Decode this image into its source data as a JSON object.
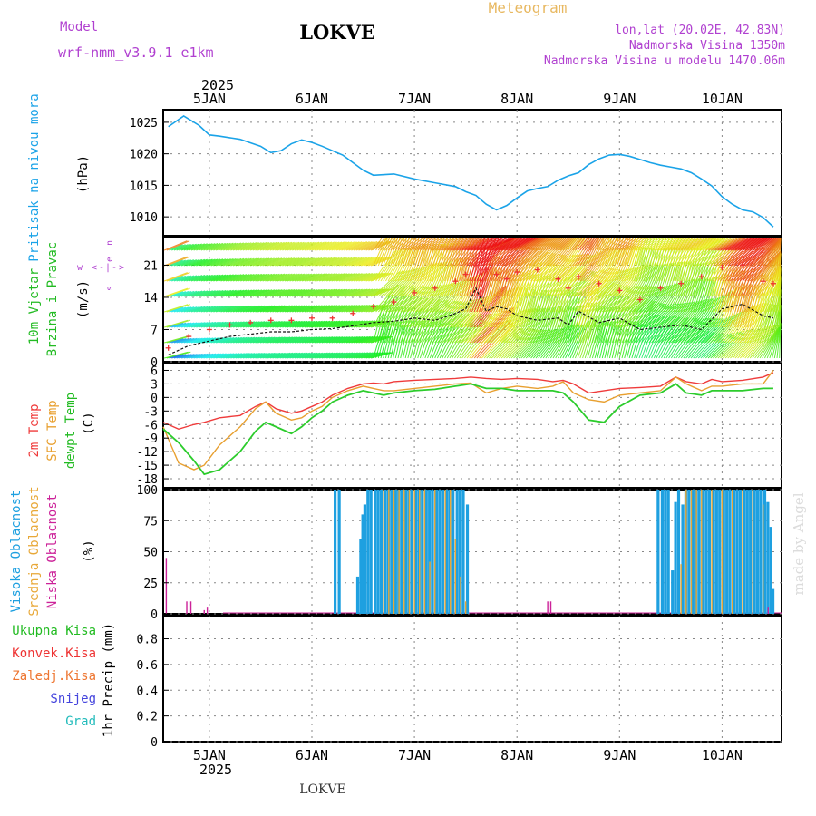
{
  "header": {
    "model_label": "Model",
    "model_name": "wrf-nmm_v3.9.1 e1km",
    "station": "LOKVE",
    "product": "Meteogram",
    "coords": "lon,lat (20.02E, 42.83N)",
    "elevation": "Nadmorska Visina 1350m",
    "model_elevation": "Nadmorska Visina u modelu 1470.06m",
    "footer_station": "LOKVE",
    "watermark": "made by Angel"
  },
  "axis": {
    "top_year": "2025",
    "bottom_year": "2025",
    "day_labels": [
      "5JAN",
      "6JAN",
      "7JAN",
      "8JAN",
      "9JAN",
      "10JAN"
    ]
  },
  "panels": {
    "pressure": {
      "labels": [
        "Pritisak na nivou mora"
      ],
      "unit": "(hPa)",
      "ticks": [
        "1010",
        "1015",
        "1020",
        "1025"
      ]
    },
    "wind": {
      "labels": [
        "10m Vjetar",
        "Brzina i Pravac"
      ],
      "unit": "(m/s)",
      "ticks": [
        "0",
        "7",
        "14",
        "21"
      ],
      "compass": [
        "w",
        "<",
        "-",
        "|",
        "-",
        ">",
        "e",
        "s",
        "n"
      ]
    },
    "temp": {
      "labels": [
        "2m Temp",
        "SFC Temp",
        "dewpt Temp"
      ],
      "unit": "(C)",
      "ticks": [
        "-18",
        "-15",
        "-12",
        "-9",
        "-6",
        "-3",
        "0",
        "3",
        "6"
      ]
    },
    "cloud": {
      "labels": [
        "Visoka Oblacnost",
        "Srednja Oblacnost",
        "Niska Oblacnost"
      ],
      "unit": "(%)",
      "ticks": [
        "0",
        "25",
        "50",
        "75",
        "100"
      ]
    },
    "precip": {
      "labels": [
        "Ukupna Kisa",
        "Konvek.Kisa",
        "Zaledj.Kisa",
        "Snijeg",
        "Grad"
      ],
      "unit": "1hr Precip (mm)",
      "ticks": [
        "0",
        "0.2",
        "0.4",
        "0.6",
        "0.8"
      ]
    }
  },
  "colors": {
    "pressure": "#1aa3e8",
    "temp_2m": "#ef3b3b",
    "temp_sfc": "#e8a030",
    "temp_dew": "#2ccc2c",
    "cloud_high": "#1ea0e0",
    "cloud_mid": "#e8a838",
    "cloud_low": "#cc2299",
    "precip_total": "#22bb22",
    "precip_conv": "#ee3333",
    "precip_frz": "#ee7733",
    "precip_snow": "#4444dd",
    "precip_hail": "#22bbbb",
    "model_text": "#b040d0",
    "meteogram": "#e8b860",
    "wind_speed": "#111111",
    "wind_gust": "#ee3333"
  },
  "chart_data": [
    {
      "type": "line",
      "title": "Pritisak na nivou mora",
      "ylabel": "(hPa)",
      "ylim": [
        1007,
        1027
      ],
      "x_unit": "day of January 2025",
      "x": [
        4.6,
        4.75,
        4.9,
        5.0,
        5.1,
        5.3,
        5.5,
        5.6,
        5.7,
        5.8,
        5.9,
        6.0,
        6.1,
        6.2,
        6.3,
        6.4,
        6.5,
        6.6,
        6.8,
        7.0,
        7.2,
        7.4,
        7.5,
        7.6,
        7.7,
        7.8,
        7.9,
        8.0,
        8.1,
        8.2,
        8.3,
        8.4,
        8.5,
        8.6,
        8.7,
        8.8,
        8.9,
        9.0,
        9.1,
        9.2,
        9.3,
        9.4,
        9.5,
        9.6,
        9.7,
        9.8,
        9.9,
        10.0,
        10.1,
        10.2,
        10.3,
        10.4,
        10.5
      ],
      "series": [
        {
          "values": [
            1024.3,
            1026.0,
            1024.5,
            1023.0,
            1022.8,
            1022.3,
            1021.2,
            1020.2,
            1020.5,
            1021.6,
            1022.2,
            1021.8,
            1021.2,
            1020.5,
            1019.8,
            1018.6,
            1017.4,
            1016.6,
            1016.8,
            1016.0,
            1015.4,
            1014.8,
            1014.0,
            1013.4,
            1012.0,
            1011.1,
            1011.8,
            1013.0,
            1014.1,
            1014.5,
            1014.8,
            1015.8,
            1016.5,
            1017.0,
            1018.3,
            1019.2,
            1019.8,
            1019.9,
            1019.6,
            1019.1,
            1018.6,
            1018.2,
            1017.9,
            1017.6,
            1017.0,
            1016.0,
            1014.9,
            1013.2,
            1012.0,
            1011.1,
            1010.8,
            1009.9,
            1008.4
          ]
        }
      ]
    },
    {
      "type": "line",
      "title": "10m Vjetar Brzina i Pravac",
      "ylabel": "(m/s)",
      "ylim": [
        0,
        27
      ],
      "x_unit": "day of January 2025",
      "x": [
        4.6,
        4.8,
        5.0,
        5.2,
        5.4,
        5.6,
        5.8,
        6.0,
        6.2,
        6.4,
        6.6,
        6.8,
        7.0,
        7.2,
        7.4,
        7.5,
        7.6,
        7.7,
        7.8,
        7.9,
        8.0,
        8.2,
        8.4,
        8.5,
        8.6,
        8.8,
        9.0,
        9.2,
        9.4,
        9.6,
        9.8,
        10.0,
        10.2,
        10.4,
        10.5
      ],
      "series": [
        {
          "values": [
            1.5,
            3.5,
            4.5,
            5.5,
            6.0,
            6.5,
            6.5,
            7.0,
            7.2,
            7.8,
            8.5,
            8.8,
            9.5,
            9.0,
            10.5,
            11.5,
            16.0,
            11.0,
            12.0,
            11.5,
            10.0,
            9.0,
            9.5,
            8.0,
            11.0,
            8.5,
            9.5,
            7.0,
            7.5,
            8.0,
            7.0,
            11.5,
            12.5,
            10.0,
            9.5
          ]
        },
        {
          "values": [
            3.0,
            5.5,
            7.0,
            8.0,
            8.5,
            9.0,
            9.0,
            9.5,
            9.5,
            10.5,
            12.0,
            13.0,
            15.0,
            16.0,
            17.5,
            19.0,
            21.0,
            20.0,
            19.0,
            18.0,
            19.5,
            20.0,
            18.0,
            16.0,
            18.5,
            17.0,
            15.5,
            13.5,
            16.0,
            17.0,
            18.5,
            20.5,
            21.0,
            17.5,
            17.0
          ]
        }
      ]
    },
    {
      "type": "line",
      "title": "Temp",
      "ylabel": "(C)",
      "ylim": [
        -20,
        7.5
      ],
      "x_unit": "day of January 2025",
      "x": [
        4.55,
        4.7,
        4.85,
        4.95,
        5.1,
        5.3,
        5.45,
        5.55,
        5.65,
        5.8,
        5.9,
        6.0,
        6.1,
        6.2,
        6.35,
        6.5,
        6.6,
        6.7,
        6.8,
        7.0,
        7.2,
        7.4,
        7.55,
        7.7,
        7.85,
        8.0,
        8.2,
        8.35,
        8.45,
        8.55,
        8.7,
        8.85,
        9.0,
        9.2,
        9.4,
        9.55,
        9.65,
        9.8,
        9.9,
        10.0,
        10.2,
        10.4,
        10.5
      ],
      "series": [
        {
          "name": "2m Temp",
          "values": [
            -5.5,
            -7.0,
            -6.0,
            -5.5,
            -4.5,
            -4.0,
            -2.0,
            -1.0,
            -2.5,
            -3.5,
            -3.0,
            -2.0,
            -1.0,
            0.5,
            2.0,
            3.0,
            3.2,
            3.0,
            3.5,
            3.8,
            4.0,
            4.2,
            4.5,
            4.2,
            4.0,
            4.2,
            4.0,
            3.5,
            3.8,
            3.0,
            1.0,
            1.5,
            2.0,
            2.2,
            2.5,
            4.5,
            3.5,
            3.0,
            4.0,
            3.5,
            3.8,
            4.5,
            5.5
          ]
        },
        {
          "name": "SFC Temp",
          "values": [
            -6.5,
            -14.5,
            -16.0,
            -15.0,
            -10.5,
            -6.5,
            -2.5,
            -1.0,
            -3.5,
            -5.0,
            -4.5,
            -3.0,
            -2.0,
            0.0,
            1.5,
            2.5,
            2.0,
            1.5,
            1.5,
            2.0,
            2.5,
            3.0,
            3.2,
            1.0,
            2.0,
            2.5,
            2.0,
            2.5,
            3.5,
            1.0,
            -0.5,
            -1.0,
            0.5,
            1.0,
            1.5,
            4.5,
            3.0,
            1.5,
            2.5,
            2.5,
            3.0,
            3.0,
            6.0
          ]
        },
        {
          "name": "dewpt Temp",
          "values": [
            -7.0,
            -10.0,
            -14.0,
            -17.0,
            -16.0,
            -12.0,
            -7.5,
            -5.5,
            -6.5,
            -8.0,
            -6.5,
            -4.5,
            -3.0,
            -1.0,
            0.5,
            1.5,
            1.0,
            0.5,
            1.0,
            1.5,
            1.8,
            2.5,
            3.0,
            2.0,
            2.0,
            1.5,
            1.5,
            1.5,
            1.0,
            -1.0,
            -5.0,
            -5.5,
            -2.0,
            0.5,
            1.0,
            3.0,
            1.0,
            0.5,
            1.5,
            1.5,
            1.5,
            2.0,
            2.0
          ]
        }
      ]
    },
    {
      "type": "bar",
      "title": "Oblacnost",
      "ylabel": "(%)",
      "ylim": [
        0,
        100
      ],
      "x_unit": "day of January 2025",
      "high": {
        "x": [
          6.23,
          6.27,
          6.45,
          6.48,
          6.5,
          6.52,
          6.55,
          6.58,
          6.62,
          6.65,
          6.68,
          6.72,
          6.75,
          6.78,
          6.82,
          6.85,
          6.88,
          6.92,
          6.95,
          6.98,
          7.02,
          7.05,
          7.08,
          7.12,
          7.15,
          7.18,
          7.22,
          7.25,
          7.28,
          7.32,
          7.35,
          7.38,
          7.42,
          7.45,
          7.48,
          7.52,
          9.38,
          9.42,
          9.45,
          9.48,
          9.52,
          9.55,
          9.58,
          9.62,
          9.65,
          9.68,
          9.72,
          9.75,
          9.78,
          9.82,
          9.85,
          9.88,
          9.92,
          9.95,
          9.98,
          10.02,
          10.05,
          10.08,
          10.12,
          10.15,
          10.18,
          10.22,
          10.25,
          10.28,
          10.32,
          10.35,
          10.38,
          10.42,
          10.45,
          10.48,
          10.5
        ],
        "values": [
          100,
          100,
          30,
          60,
          80,
          88,
          100,
          100,
          100,
          100,
          100,
          100,
          100,
          100,
          100,
          100,
          100,
          100,
          100,
          100,
          100,
          100,
          100,
          100,
          100,
          100,
          100,
          100,
          100,
          100,
          100,
          100,
          100,
          100,
          100,
          88,
          100,
          100,
          100,
          100,
          35,
          90,
          100,
          88,
          100,
          100,
          100,
          100,
          100,
          100,
          100,
          100,
          100,
          100,
          100,
          100,
          100,
          100,
          100,
          100,
          100,
          100,
          100,
          100,
          100,
          100,
          100,
          100,
          90,
          70,
          20
        ]
      },
      "mid": {
        "x": [
          6.7,
          6.75,
          6.8,
          6.85,
          6.9,
          6.95,
          7.0,
          7.05,
          7.1,
          7.15,
          7.2,
          7.3,
          7.35,
          7.4,
          7.45,
          7.5,
          9.6,
          9.65,
          9.7,
          9.75,
          9.8,
          9.9,
          10.0,
          10.1,
          10.2,
          10.3,
          10.4
        ],
        "values": [
          100,
          100,
          100,
          100,
          100,
          100,
          100,
          100,
          100,
          42,
          100,
          100,
          100,
          60,
          30,
          10,
          40,
          100,
          100,
          100,
          100,
          100,
          100,
          100,
          100,
          100,
          88
        ]
      },
      "low": {
        "x": [
          4.58,
          4.78,
          4.82,
          4.95,
          4.98,
          8.3,
          8.33,
          10.45
        ],
        "values": [
          45,
          10,
          10,
          3,
          5,
          10,
          10,
          5
        ]
      }
    },
    {
      "type": "bar",
      "title": "1hr Precip",
      "ylabel": "1hr Precip (mm)",
      "ylim": [
        0,
        0.98
      ],
      "series": []
    }
  ]
}
